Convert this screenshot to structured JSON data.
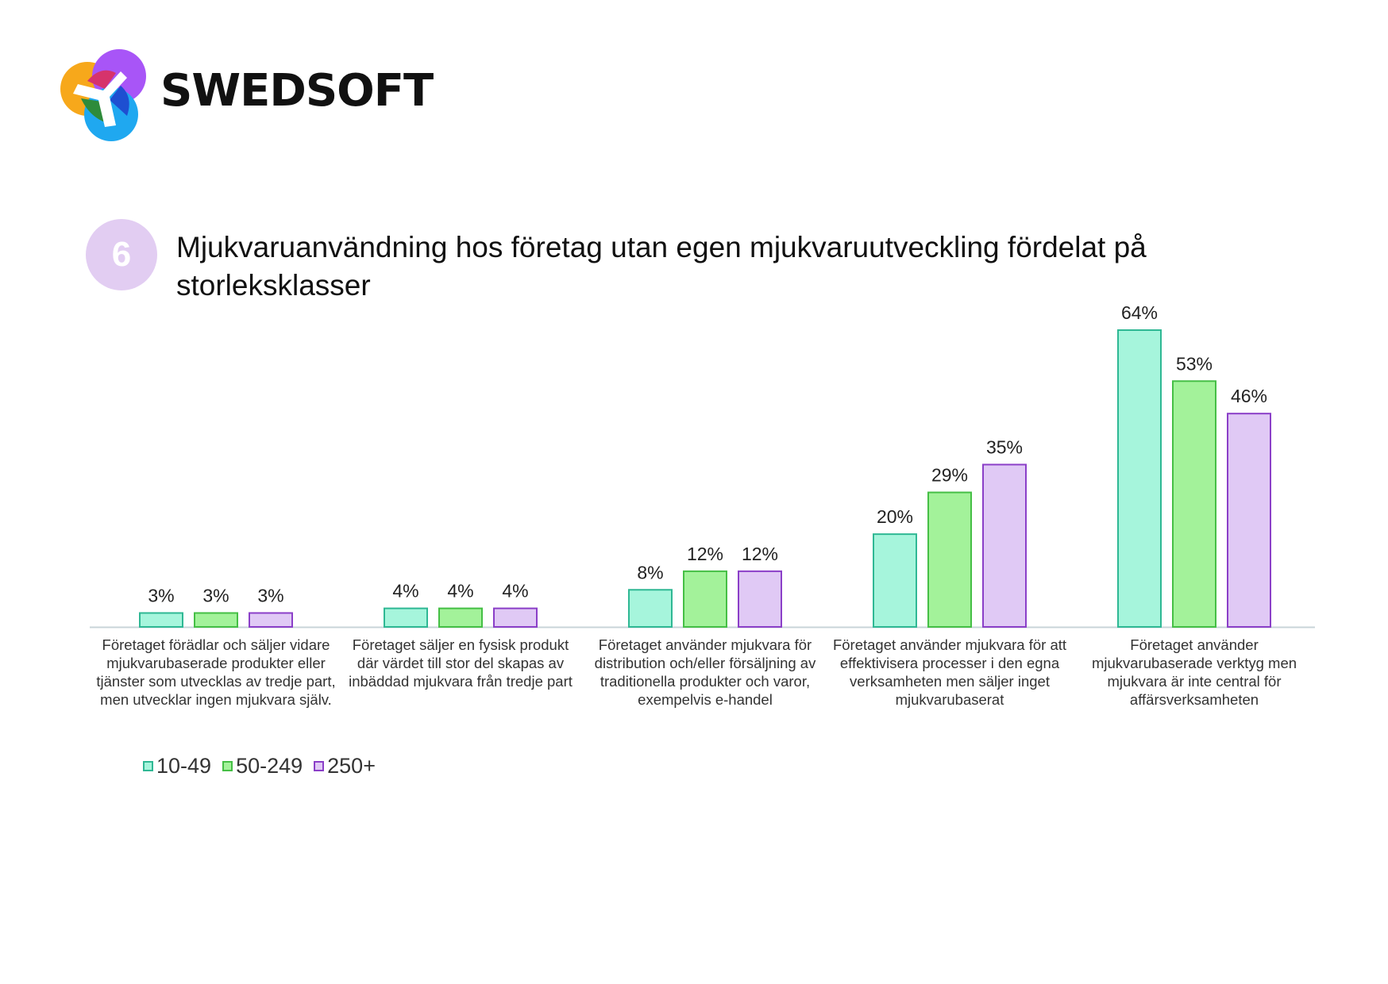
{
  "logo": {
    "text": "SWEDSOFT",
    "colors": [
      "#f7a81b",
      "#a855f7",
      "#1fa8f0",
      "#d6336c",
      "#2e8b3a",
      "#1e4fd1"
    ]
  },
  "badge": "6",
  "title": "Mjukvaruanvändning hos företag utan egen mjukvaruutveckling fördelat på storleksklasser",
  "chart_data": {
    "type": "bar",
    "categories": [
      [
        "Företaget förädlar och säljer vidare",
        "mjukvarubaserade produkter eller",
        "tjänster som utvecklas av tredje part,",
        "men utvecklar ingen mjukvara själv."
      ],
      [
        "Företaget säljer en fysisk produkt",
        "där värdet till stor del skapas av",
        "inbäddad mjukvara från tredje part"
      ],
      [
        "Företaget använder mjukvara för",
        "distribution och/eller försäljning av",
        "traditionella produkter och varor,",
        "exempelvis e-handel"
      ],
      [
        "Företaget använder mjukvara för att",
        "effektivisera processer i den egna",
        "verksamheten men säljer inget",
        "mjukvarubaserat"
      ],
      [
        "Företaget använder",
        "mjukvarubaserade verktyg men",
        "mjukvara är inte central för",
        "affärsverksamheten"
      ]
    ],
    "series": [
      {
        "name": "10-49",
        "values": [
          3,
          4,
          8,
          20,
          64
        ],
        "fill": "#a6f5dc",
        "stroke": "#2fb894"
      },
      {
        "name": "50-249",
        "values": [
          3,
          4,
          12,
          29,
          53
        ],
        "fill": "#a3f29a",
        "stroke": "#45bf45"
      },
      {
        "name": "250+",
        "values": [
          3,
          4,
          12,
          35,
          46
        ],
        "fill": "#e0c9f5",
        "stroke": "#8b3fc8"
      }
    ],
    "value_suffix": "%",
    "ylim": [
      0,
      64
    ],
    "grid": false,
    "legend_position": "bottom-left"
  }
}
